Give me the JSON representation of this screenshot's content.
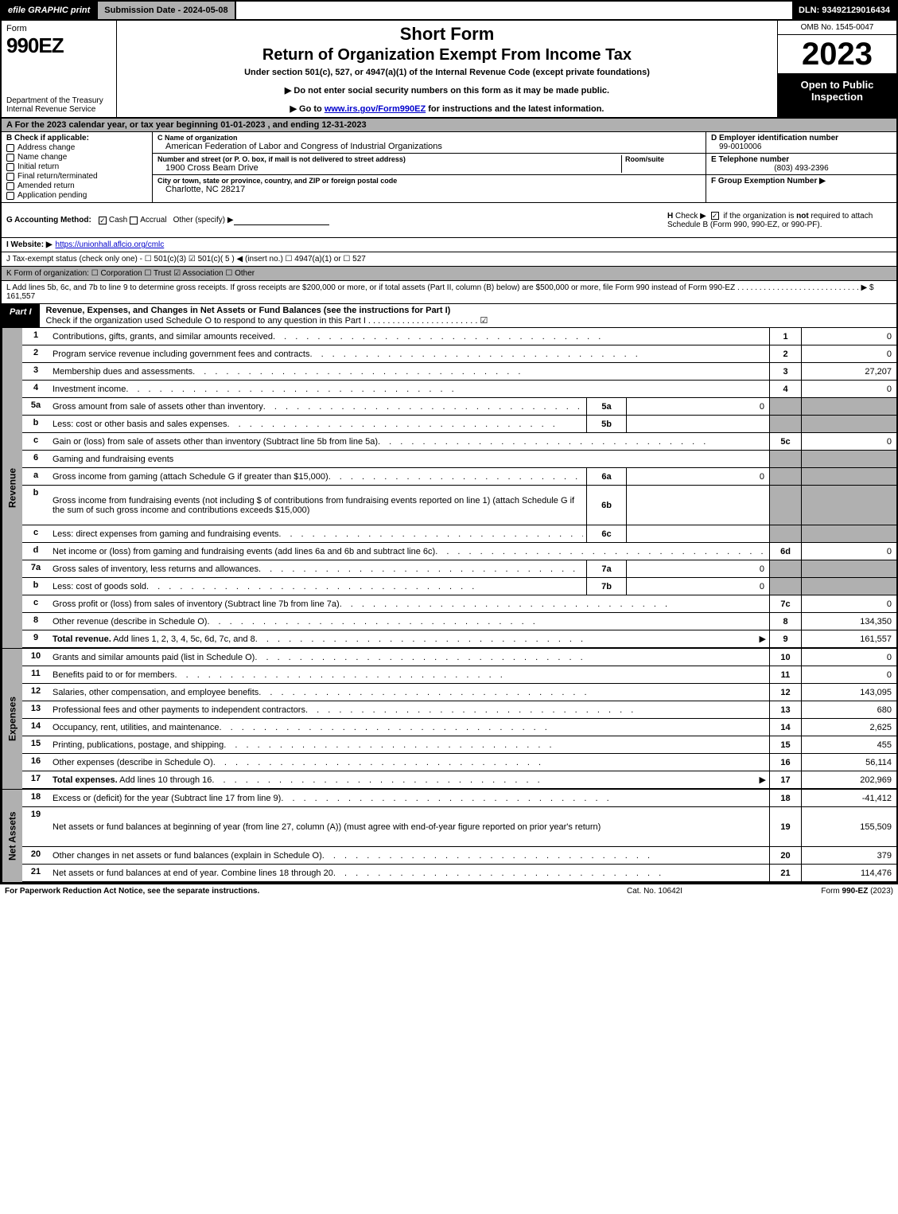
{
  "topbar": {
    "efile": "efile GRAPHIC print",
    "subdate": "Submission Date - 2024-05-08",
    "dln": "DLN: 93492129016434"
  },
  "header": {
    "form_word": "Form",
    "form_number": "990EZ",
    "dept": "Department of the Treasury\nInternal Revenue Service",
    "title1": "Short Form",
    "title2": "Return of Organization Exempt From Income Tax",
    "subtitle": "Under section 501(c), 527, or 4947(a)(1) of the Internal Revenue Code (except private foundations)",
    "note1": "▶ Do not enter social security numbers on this form as it may be made public.",
    "note2": "▶ Go to www.irs.gov/Form990EZ for instructions and the latest information.",
    "omb": "OMB No. 1545-0047",
    "year": "2023",
    "openbox": "Open to Public Inspection"
  },
  "row_a": "A  For the 2023 calendar year, or tax year beginning 01-01-2023 , and ending 12-31-2023",
  "boxB": {
    "label": "B  Check if applicable:",
    "opts": [
      "Address change",
      "Name change",
      "Initial return",
      "Final return/terminated",
      "Amended return",
      "Application pending"
    ]
  },
  "boxC": {
    "name_label": "C Name of organization",
    "name": "American Federation of Labor and Congress of Industrial Organizations",
    "street_label": "Number and street (or P. O. box, if mail is not delivered to street address)",
    "room_label": "Room/suite",
    "street": "1900 Cross Beam Drive",
    "city_label": "City or town, state or province, country, and ZIP or foreign postal code",
    "city": "Charlotte, NC  28217"
  },
  "boxD": {
    "label": "D Employer identification number",
    "value": "99-0010006"
  },
  "boxE": {
    "label": "E Telephone number",
    "value": "(803) 493-2396"
  },
  "boxF": {
    "label": "F Group Exemption Number  ▶"
  },
  "rowG": {
    "label": "G Accounting Method:",
    "cash": "Cash",
    "accrual": "Accrual",
    "other": "Other (specify) ▶"
  },
  "rowH": {
    "label": "H  Check ▶ ☑ if the organization is not required to attach Schedule B (Form 990, 990-EZ, or 990-PF)."
  },
  "rowI": {
    "label": "I Website: ▶",
    "value": "https://unionhall.aflcio.org/cmlc"
  },
  "rowJ": "J Tax-exempt status (check only one) - ☐ 501(c)(3)  ☑ 501(c)( 5 ) ◀ (insert no.)  ☐ 4947(a)(1) or  ☐ 527",
  "rowK": "K Form of organization:   ☐ Corporation   ☐ Trust   ☑ Association   ☐ Other",
  "rowL": {
    "text": "L Add lines 5b, 6c, and 7b to line 9 to determine gross receipts. If gross receipts are $200,000 or more, or if total assets (Part II, column (B) below) are $500,000 or more, file Form 990 instead of Form 990-EZ  . . . . . . . . . . . . . . . . . . . . . . . . . . . .  ▶ $ 161,557"
  },
  "part1": {
    "tab": "Part I",
    "title": "Revenue, Expenses, and Changes in Net Assets or Fund Balances (see the instructions for Part I)",
    "subtitle": "Check if the organization used Schedule O to respond to any question in this Part I . . . . . . . . . . . . . . . . . . . . . . . ☑"
  },
  "side_labels": {
    "revenue": "Revenue",
    "expenses": "Expenses",
    "netassets": "Net Assets"
  },
  "revenue_rows": [
    {
      "n": "1",
      "d": "Contributions, gifts, grants, and similar amounts received",
      "line": "1",
      "val": "0"
    },
    {
      "n": "2",
      "d": "Program service revenue including government fees and contracts",
      "line": "2",
      "val": "0"
    },
    {
      "n": "3",
      "d": "Membership dues and assessments",
      "line": "3",
      "val": "27,207"
    },
    {
      "n": "4",
      "d": "Investment income",
      "line": "4",
      "val": "0"
    },
    {
      "n": "5a",
      "d": "Gross amount from sale of assets other than inventory",
      "sub": "5a",
      "subval": "0",
      "shade_right": true
    },
    {
      "n": "b",
      "d": "Less: cost or other basis and sales expenses",
      "sub": "5b",
      "subval": "",
      "shade_right": true
    },
    {
      "n": "c",
      "d": "Gain or (loss) from sale of assets other than inventory (Subtract line 5b from line 5a)",
      "line": "5c",
      "val": "0"
    },
    {
      "n": "6",
      "d": "Gaming and fundraising events",
      "noval": true,
      "shade_right": true
    },
    {
      "n": "a",
      "d": "Gross income from gaming (attach Schedule G if greater than $15,000)",
      "sub": "6a",
      "subval": "0",
      "shade_right": true
    },
    {
      "n": "b",
      "d": "Gross income from fundraising events (not including $              of contributions from fundraising events reported on line 1) (attach Schedule G if the sum of such gross income and contributions exceeds $15,000)",
      "sub": "6b",
      "subval": "",
      "shade_right": true,
      "tall": true
    },
    {
      "n": "c",
      "d": "Less: direct expenses from gaming and fundraising events",
      "sub": "6c",
      "subval": "",
      "shade_right": true
    },
    {
      "n": "d",
      "d": "Net income or (loss) from gaming and fundraising events (add lines 6a and 6b and subtract line 6c)",
      "line": "6d",
      "val": "0"
    },
    {
      "n": "7a",
      "d": "Gross sales of inventory, less returns and allowances",
      "sub": "7a",
      "subval": "0",
      "shade_right": true
    },
    {
      "n": "b",
      "d": "Less: cost of goods sold",
      "sub": "7b",
      "subval": "0",
      "shade_right": true
    },
    {
      "n": "c",
      "d": "Gross profit or (loss) from sales of inventory (Subtract line 7b from line 7a)",
      "line": "7c",
      "val": "0"
    },
    {
      "n": "8",
      "d": "Other revenue (describe in Schedule O)",
      "line": "8",
      "val": "134,350"
    },
    {
      "n": "9",
      "d": "Total revenue. Add lines 1, 2, 3, 4, 5c, 6d, 7c, and 8",
      "line": "9",
      "val": "161,557",
      "bold": true,
      "arrow": true
    }
  ],
  "expense_rows": [
    {
      "n": "10",
      "d": "Grants and similar amounts paid (list in Schedule O)",
      "line": "10",
      "val": "0"
    },
    {
      "n": "11",
      "d": "Benefits paid to or for members",
      "line": "11",
      "val": "0"
    },
    {
      "n": "12",
      "d": "Salaries, other compensation, and employee benefits",
      "line": "12",
      "val": "143,095"
    },
    {
      "n": "13",
      "d": "Professional fees and other payments to independent contractors",
      "line": "13",
      "val": "680"
    },
    {
      "n": "14",
      "d": "Occupancy, rent, utilities, and maintenance",
      "line": "14",
      "val": "2,625"
    },
    {
      "n": "15",
      "d": "Printing, publications, postage, and shipping",
      "line": "15",
      "val": "455"
    },
    {
      "n": "16",
      "d": "Other expenses (describe in Schedule O)",
      "line": "16",
      "val": "56,114"
    },
    {
      "n": "17",
      "d": "Total expenses. Add lines 10 through 16",
      "line": "17",
      "val": "202,969",
      "bold": true,
      "arrow": true
    }
  ],
  "netasset_rows": [
    {
      "n": "18",
      "d": "Excess or (deficit) for the year (Subtract line 17 from line 9)",
      "line": "18",
      "val": "-41,412"
    },
    {
      "n": "19",
      "d": "Net assets or fund balances at beginning of year (from line 27, column (A)) (must agree with end-of-year figure reported on prior year's return)",
      "line": "19",
      "val": "155,509",
      "tall": true
    },
    {
      "n": "20",
      "d": "Other changes in net assets or fund balances (explain in Schedule O)",
      "line": "20",
      "val": "379"
    },
    {
      "n": "21",
      "d": "Net assets or fund balances at end of year. Combine lines 18 through 20",
      "line": "21",
      "val": "114,476"
    }
  ],
  "footer": {
    "left": "For Paperwork Reduction Act Notice, see the separate instructions.",
    "center": "Cat. No. 10642I",
    "right": "Form 990-EZ (2023)"
  }
}
